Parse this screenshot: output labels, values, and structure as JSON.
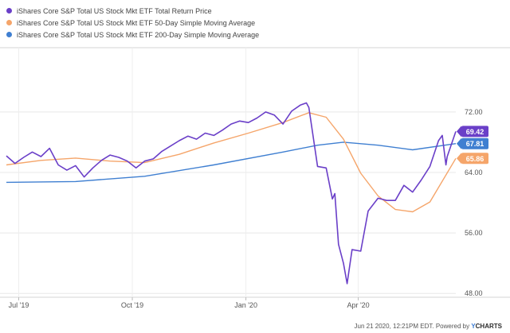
{
  "chart_data": {
    "type": "line",
    "x_ticks": [
      "Jul '19",
      "Oct '19",
      "Jan '20",
      "Apr '20"
    ],
    "y_ticks": [
      48.0,
      56.0,
      64.0,
      72.0
    ],
    "y_tick_labels": [
      "48.00",
      "56.00",
      "64.00",
      "72.00"
    ],
    "ylim": [
      47.5,
      80.5
    ],
    "xlim": [
      "2019-06-21",
      "2020-06-19"
    ],
    "grid": "horizontal",
    "legend_position": "top-left",
    "series": [
      {
        "name": "iShares Core S&P Total US Stock Mkt ETF Total Return Price",
        "color": "#6a3fc8",
        "end_label": "69.42",
        "points": [
          [
            "2019-06-21",
            66.2
          ],
          [
            "2019-06-28",
            65.2
          ],
          [
            "2019-07-05",
            66.0
          ],
          [
            "2019-07-12",
            66.7
          ],
          [
            "2019-07-19",
            66.1
          ],
          [
            "2019-07-26",
            67.2
          ],
          [
            "2019-08-02",
            65.0
          ],
          [
            "2019-08-09",
            64.3
          ],
          [
            "2019-08-16",
            64.9
          ],
          [
            "2019-08-23",
            63.4
          ],
          [
            "2019-08-30",
            64.6
          ],
          [
            "2019-09-06",
            65.6
          ],
          [
            "2019-09-13",
            66.3
          ],
          [
            "2019-09-20",
            66.0
          ],
          [
            "2019-09-27",
            65.5
          ],
          [
            "2019-10-04",
            64.6
          ],
          [
            "2019-10-11",
            65.5
          ],
          [
            "2019-10-18",
            65.8
          ],
          [
            "2019-10-25",
            66.8
          ],
          [
            "2019-11-01",
            67.5
          ],
          [
            "2019-11-08",
            68.2
          ],
          [
            "2019-11-15",
            68.8
          ],
          [
            "2019-11-22",
            68.4
          ],
          [
            "2019-11-29",
            69.2
          ],
          [
            "2019-12-06",
            68.9
          ],
          [
            "2019-12-13",
            69.6
          ],
          [
            "2019-12-20",
            70.4
          ],
          [
            "2019-12-27",
            70.8
          ],
          [
            "2020-01-03",
            70.6
          ],
          [
            "2020-01-10",
            71.2
          ],
          [
            "2020-01-17",
            72.0
          ],
          [
            "2020-01-24",
            71.6
          ],
          [
            "2020-01-31",
            70.4
          ],
          [
            "2020-02-07",
            72.1
          ],
          [
            "2020-02-14",
            72.9
          ],
          [
            "2020-02-19",
            73.2
          ],
          [
            "2020-02-21",
            72.6
          ],
          [
            "2020-02-28",
            64.8
          ],
          [
            "2020-03-06",
            64.6
          ],
          [
            "2020-03-11",
            60.5
          ],
          [
            "2020-03-13",
            61.2
          ],
          [
            "2020-03-16",
            54.5
          ],
          [
            "2020-03-20",
            52.0
          ],
          [
            "2020-03-23",
            49.3
          ],
          [
            "2020-03-27",
            53.8
          ],
          [
            "2020-04-03",
            53.6
          ],
          [
            "2020-04-09",
            58.9
          ],
          [
            "2020-04-17",
            60.6
          ],
          [
            "2020-04-24",
            60.3
          ],
          [
            "2020-05-01",
            60.3
          ],
          [
            "2020-05-08",
            62.3
          ],
          [
            "2020-05-15",
            61.4
          ],
          [
            "2020-05-22",
            63.0
          ],
          [
            "2020-05-29",
            64.8
          ],
          [
            "2020-06-05",
            68.2
          ],
          [
            "2020-06-08",
            68.9
          ],
          [
            "2020-06-11",
            65.0
          ],
          [
            "2020-06-12",
            66.1
          ],
          [
            "2020-06-19",
            69.42
          ]
        ]
      },
      {
        "name": "iShares Core S&P Total US Stock Mkt ETF 50-Day Simple Moving Average",
        "color": "#f5a56a",
        "end_label": "65.86",
        "points": [
          [
            "2019-06-21",
            65.0
          ],
          [
            "2019-07-19",
            65.6
          ],
          [
            "2019-08-16",
            65.9
          ],
          [
            "2019-09-13",
            65.5
          ],
          [
            "2019-10-11",
            65.3
          ],
          [
            "2019-11-08",
            66.4
          ],
          [
            "2019-12-06",
            67.9
          ],
          [
            "2020-01-03",
            69.2
          ],
          [
            "2020-01-31",
            70.6
          ],
          [
            "2020-02-21",
            71.9
          ],
          [
            "2020-03-06",
            71.3
          ],
          [
            "2020-03-20",
            68.4
          ],
          [
            "2020-04-03",
            63.9
          ],
          [
            "2020-04-17",
            60.9
          ],
          [
            "2020-05-01",
            59.1
          ],
          [
            "2020-05-15",
            58.8
          ],
          [
            "2020-05-29",
            60.1
          ],
          [
            "2020-06-19",
            65.86
          ]
        ]
      },
      {
        "name": "iShares Core S&P Total US Stock Mkt ETF 200-Day Simple Moving Average",
        "color": "#3f7fd1",
        "end_label": "67.81",
        "points": [
          [
            "2019-06-21",
            62.7
          ],
          [
            "2019-08-16",
            62.8
          ],
          [
            "2019-10-11",
            63.5
          ],
          [
            "2019-12-06",
            65.0
          ],
          [
            "2020-01-31",
            66.7
          ],
          [
            "2020-02-28",
            67.6
          ],
          [
            "2020-03-20",
            68.0
          ],
          [
            "2020-04-17",
            67.6
          ],
          [
            "2020-05-15",
            67.0
          ],
          [
            "2020-06-19",
            67.81
          ]
        ]
      }
    ]
  },
  "footer": {
    "date": "Jun 21 2020, 12:21PM EDT.",
    "powered": "Powered by",
    "brand_y": "Y",
    "brand_rest": "CHARTS"
  }
}
